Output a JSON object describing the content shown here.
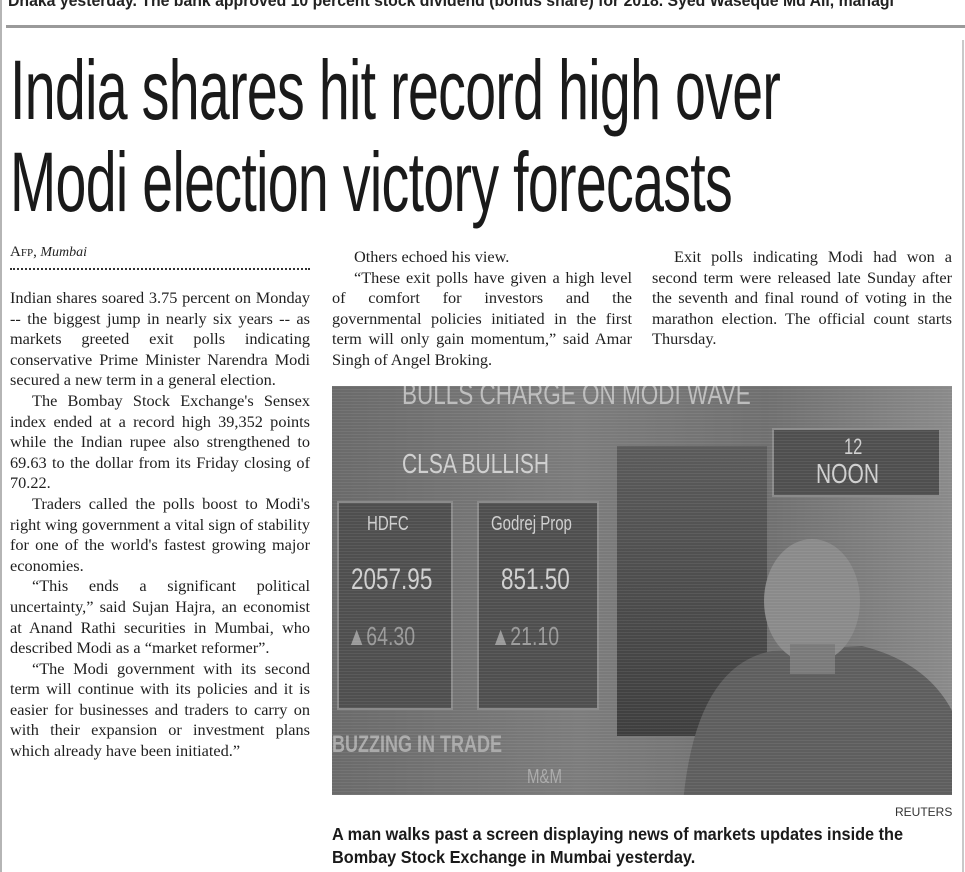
{
  "top_line": "Dhaka yesterday. The bank approved 10 percent stock dividend (bonus share) for 2018. Syed Waseque Md Ali, managi",
  "headline": {
    "line1": "India shares hit record high over",
    "line2": "Modi election victory forecasts"
  },
  "byline": {
    "source": "Afp,",
    "location": "Mumbai"
  },
  "column1": [
    "Indian shares soared 3.75 percent on Monday -- the biggest jump in nearly six years -- as markets greeted exit polls indicating conservative Prime Minister Narendra Modi secured a new term in a general election.",
    "The Bombay Stock Exchange's Sensex index ended at a record high 39,352 points while the Indian rupee also strengthened to 69.63 to the dollar from its Friday closing of 70.22.",
    "Traders called the polls boost to Modi's right wing government a vital sign of stability for one of the world's fastest growing major economies.",
    "“This ends a significant political uncertainty,” said Sujan Hajra, an economist at Anand Rathi securities in Mumbai, who described Modi as a “market reformer”.",
    "“The Modi government with its second term will continue with its policies and it is easier for businesses and traders to carry on with their expansion or investment plans which already have been initiated.”"
  ],
  "column2": [
    "Others echoed his view.",
    "“These exit polls have given a high level of comfort for investors and the governmental policies initiated in the first term will only gain momentum,” said Amar Singh of Angel Broking."
  ],
  "column3": [
    "Exit polls indicating Modi had won a second term were released late Sunday after the seventh and final round of voting in the marathon election. The official count starts Thursday."
  ],
  "photo": {
    "banner": "BULLS CHARGE ON MODI WAVE",
    "panel_title": "CLSA BULLISH",
    "stock1": {
      "name": "HDFC",
      "price": "2057.95",
      "change": "▲64.30"
    },
    "stock2": {
      "name": "Godrej Prop",
      "price": "851.50",
      "change": "▲21.10"
    },
    "time_top": "12",
    "time_bottom": "NOON",
    "ticker": "BUZZING IN TRADE",
    "ticker2": "M&M",
    "credit": "REUTERS"
  },
  "caption": "A man walks past a screen displaying news of markets updates inside the Bombay Stock Exchange in Mumbai yesterday."
}
